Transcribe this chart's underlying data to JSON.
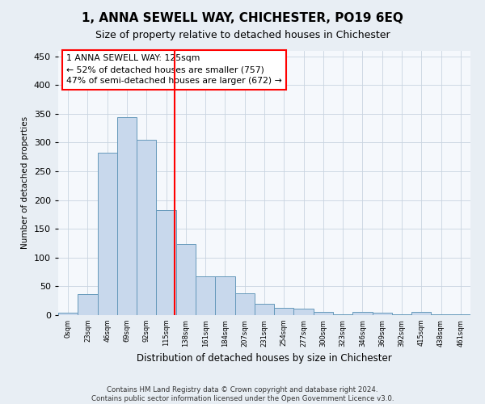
{
  "title": "1, ANNA SEWELL WAY, CHICHESTER, PO19 6EQ",
  "subtitle": "Size of property relative to detached houses in Chichester",
  "xlabel": "Distribution of detached houses by size in Chichester",
  "ylabel": "Number of detached properties",
  "bar_color": "#c8d8ec",
  "bar_edge_color": "#6699bb",
  "categories": [
    "0sqm",
    "23sqm",
    "46sqm",
    "69sqm",
    "92sqm",
    "115sqm",
    "138sqm",
    "161sqm",
    "184sqm",
    "207sqm",
    "231sqm",
    "254sqm",
    "277sqm",
    "300sqm",
    "323sqm",
    "346sqm",
    "369sqm",
    "392sqm",
    "415sqm",
    "438sqm",
    "461sqm"
  ],
  "values": [
    4,
    37,
    282,
    344,
    305,
    182,
    123,
    67,
    67,
    38,
    20,
    12,
    11,
    5,
    2,
    5,
    4,
    2,
    6,
    2,
    2
  ],
  "annotation_title": "1 ANNA SEWELL WAY: 125sqm",
  "annotation_line1": "← 52% of detached houses are smaller (757)",
  "annotation_line2": "47% of semi-detached houses are larger (672) →",
  "annotation_box_color": "white",
  "annotation_box_edge_color": "red",
  "vline_color": "red",
  "ylim": [
    0,
    460
  ],
  "yticks": [
    0,
    50,
    100,
    150,
    200,
    250,
    300,
    350,
    400,
    450
  ],
  "footer_line1": "Contains HM Land Registry data © Crown copyright and database right 2024.",
  "footer_line2": "Contains public sector information licensed under the Open Government Licence v3.0.",
  "background_color": "#e8eef4",
  "plot_bg_color": "#f5f8fc",
  "grid_color": "#c8d4e0"
}
